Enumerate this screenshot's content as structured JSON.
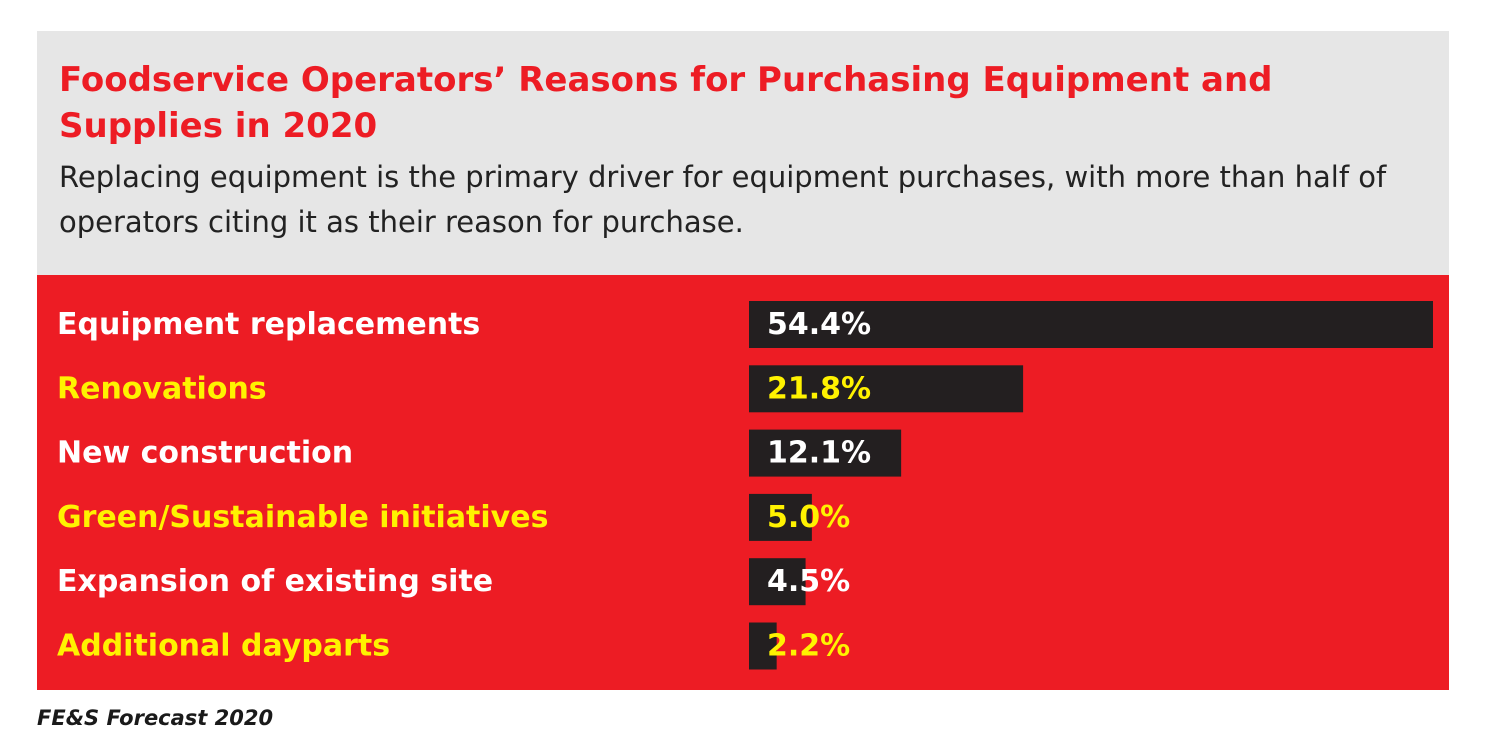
{
  "colors": {
    "accent_red": "#ed1c24",
    "header_bg": "#e6e6e6",
    "bar": "#231f20",
    "label_white": "#ffffff",
    "label_yellow": "#fff200"
  },
  "header": {
    "title": "Foodservice Operators’ Reasons for Purchasing Equipment and Supplies in 2020",
    "subtitle": "Replacing equipment is the primary driver for equipment purchases, with more than half of operators citing it as their reason for purchase."
  },
  "source": "FE&S Forecast 2020",
  "chart_data": {
    "type": "bar",
    "orientation": "horizontal",
    "title": "Foodservice Operators’ Reasons for Purchasing Equipment and Supplies in 2020",
    "categories": [
      "Equipment replacements",
      "Renovations",
      "New construction",
      "Green/Sustainable initiatives",
      "Expansion of existing site",
      "Additional dayparts"
    ],
    "values": [
      54.4,
      21.8,
      12.1,
      5.0,
      4.5,
      2.2
    ],
    "value_labels": [
      "54.4%",
      "21.8%",
      "12.1%",
      "5.0%",
      "4.5%",
      "2.2%"
    ],
    "label_colors": [
      "#ffffff",
      "#fff200",
      "#ffffff",
      "#fff200",
      "#ffffff",
      "#fff200"
    ],
    "unit": "%",
    "xlim": [
      0,
      54.4
    ],
    "grid": false,
    "legend": "none"
  }
}
